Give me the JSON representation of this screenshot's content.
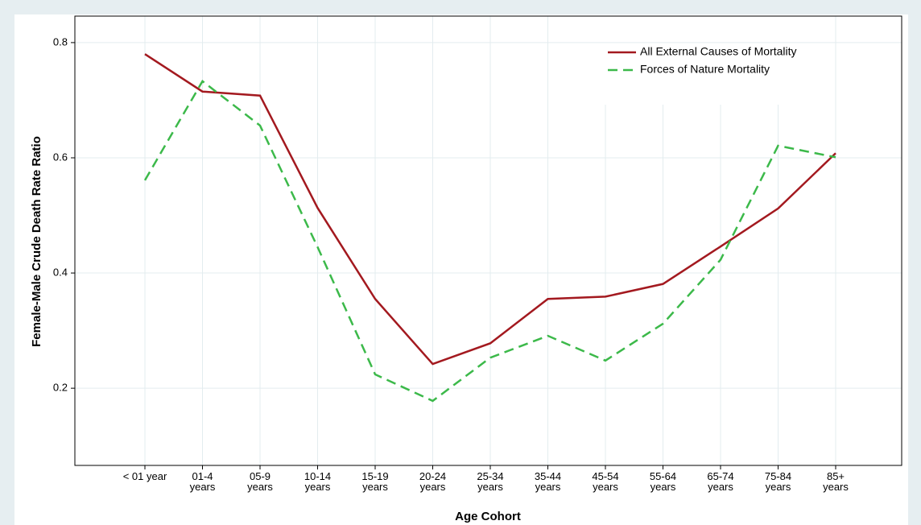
{
  "chart_data": {
    "type": "line",
    "x_label": "Age Cohort",
    "y_label": "Female-Male Crude Death Rate Ratio",
    "categories": [
      "< 01 year",
      "01-4\nyears",
      "05-9\nyears",
      "10-14\nyears",
      "15-19\nyears",
      "20-24\nyears",
      "25-34\nyears",
      "35-44\nyears",
      "45-54\nyears",
      "55-64\nyears",
      "65-74\nyears",
      "75-84\nyears",
      "85+\nyears"
    ],
    "series": [
      {
        "name": "All External Causes of Mortality",
        "color": "#a3191f",
        "linestyle": "solid",
        "values": [
          0.78,
          0.715,
          0.708,
          0.513,
          0.355,
          0.242,
          0.278,
          0.355,
          0.359,
          0.381,
          0.446,
          0.512,
          0.608
        ]
      },
      {
        "name": "Forces of Nature Mortality",
        "color": "#3cb94a",
        "linestyle": "dashed",
        "values": [
          0.561,
          0.733,
          0.656,
          0.445,
          0.224,
          0.178,
          0.253,
          0.291,
          0.248,
          0.312,
          0.423,
          0.621,
          0.601
        ]
      }
    ],
    "ylim": [
      0.066,
      0.846
    ],
    "yticks": [
      0.2,
      0.4,
      0.6,
      0.8
    ],
    "grid": true,
    "legend": "upper right"
  }
}
